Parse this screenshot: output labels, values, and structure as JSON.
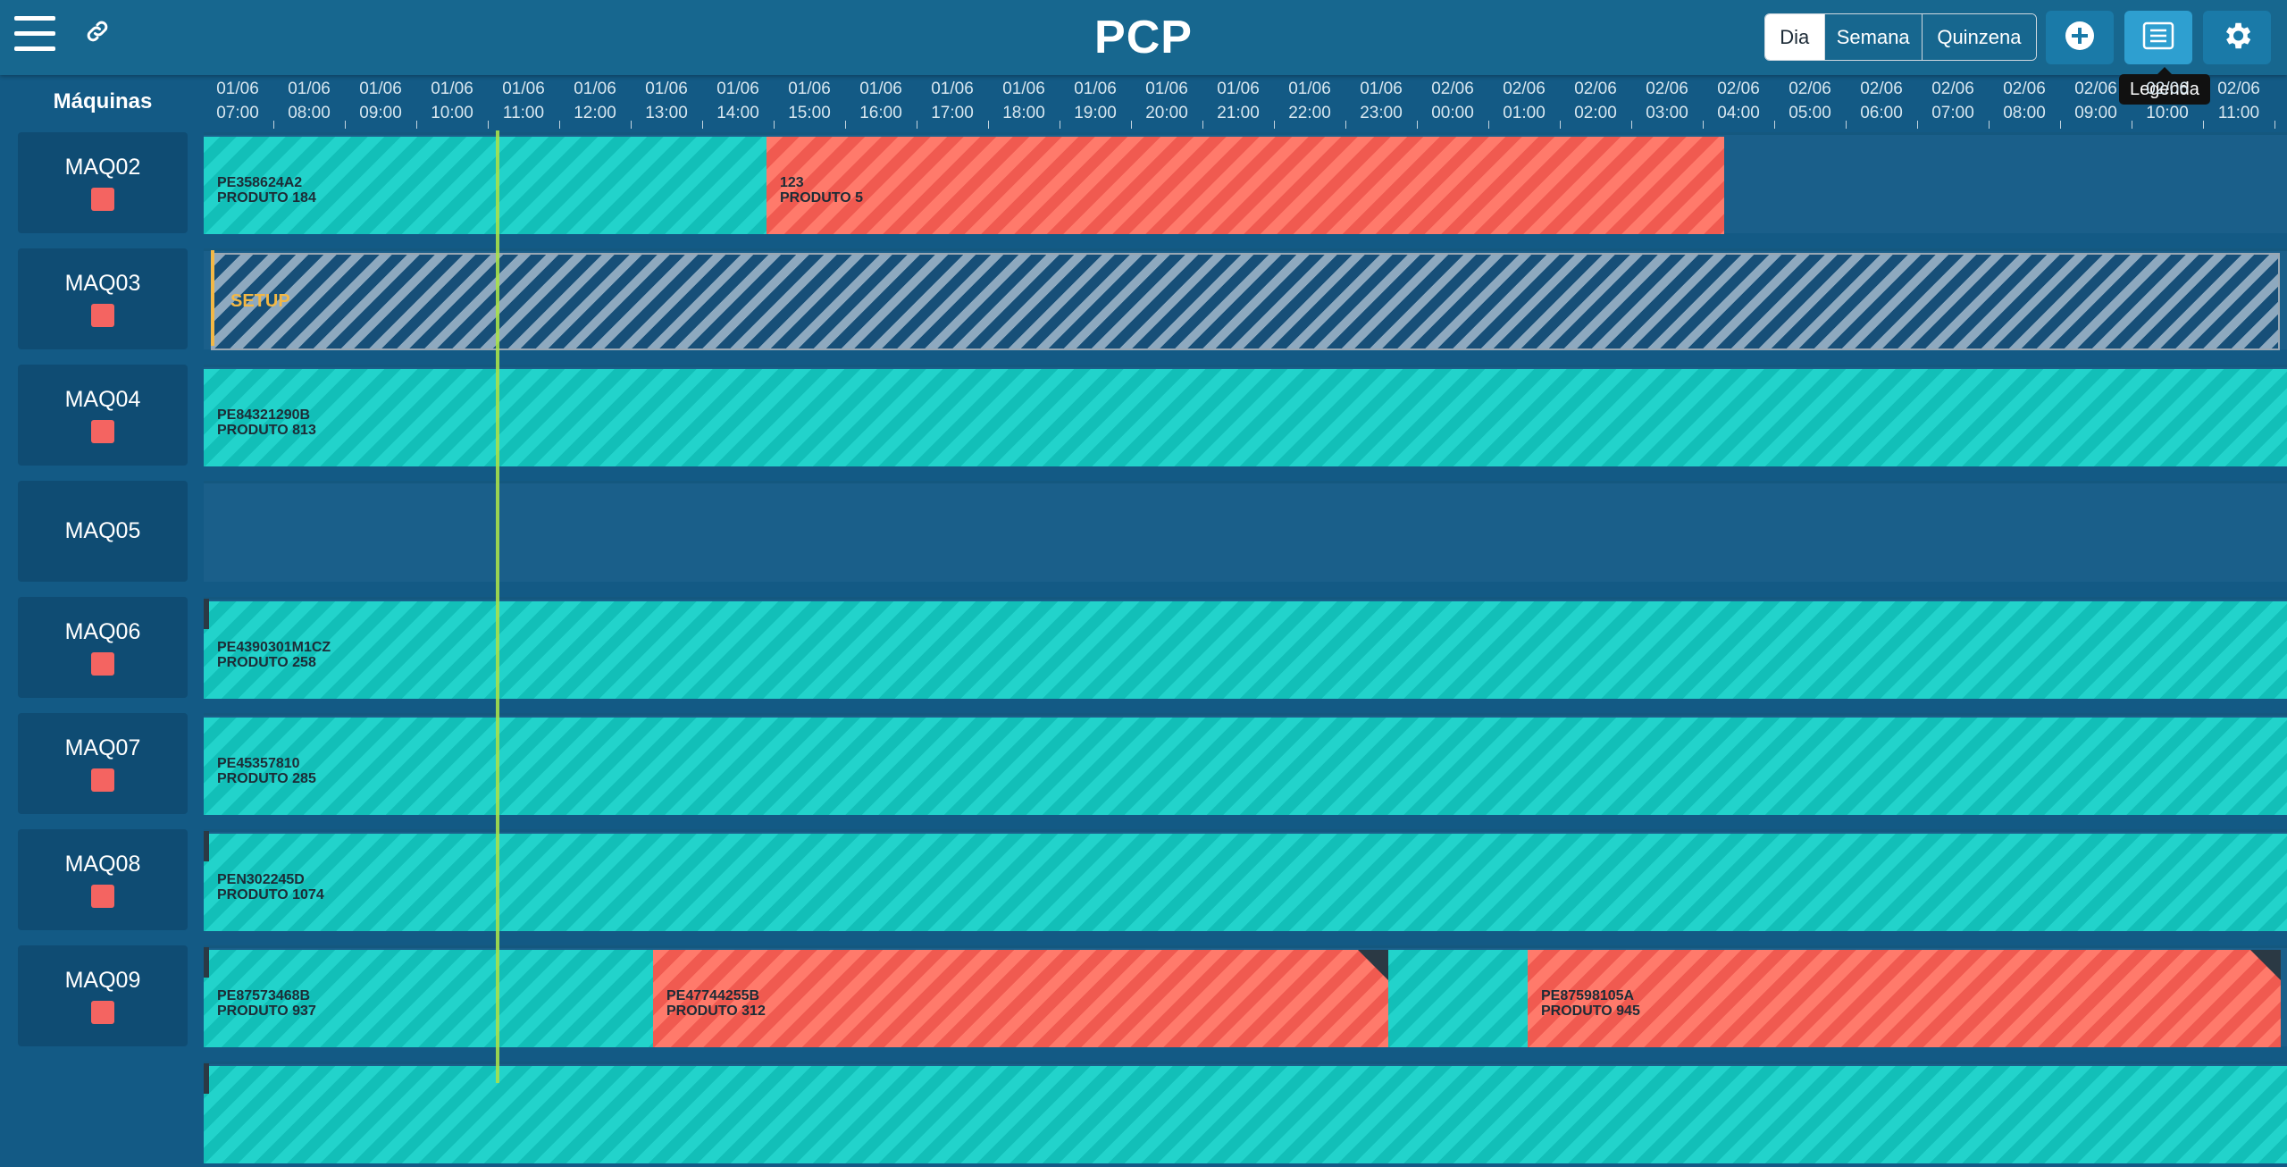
{
  "header": {
    "title": "PCP",
    "view_options": [
      "Dia",
      "Semana",
      "Quinzena"
    ],
    "active_view": "Dia",
    "tooltip": "Legenda",
    "icons": {
      "menu": "hamburger-menu-icon",
      "link": "link-icon",
      "add": "plus-circle-icon",
      "legend": "list-icon",
      "settings": "gear-icon"
    }
  },
  "timeline": {
    "machines_label": "Máquinas",
    "ticks": [
      {
        "date": "01/06",
        "time": "07:00"
      },
      {
        "date": "01/06",
        "time": "08:00"
      },
      {
        "date": "01/06",
        "time": "09:00"
      },
      {
        "date": "01/06",
        "time": "10:00"
      },
      {
        "date": "01/06",
        "time": "11:00"
      },
      {
        "date": "01/06",
        "time": "12:00"
      },
      {
        "date": "01/06",
        "time": "13:00"
      },
      {
        "date": "01/06",
        "time": "14:00"
      },
      {
        "date": "01/06",
        "time": "15:00"
      },
      {
        "date": "01/06",
        "time": "16:00"
      },
      {
        "date": "01/06",
        "time": "17:00"
      },
      {
        "date": "01/06",
        "time": "18:00"
      },
      {
        "date": "01/06",
        "time": "19:00"
      },
      {
        "date": "01/06",
        "time": "20:00"
      },
      {
        "date": "01/06",
        "time": "21:00"
      },
      {
        "date": "01/06",
        "time": "22:00"
      },
      {
        "date": "01/06",
        "time": "23:00"
      },
      {
        "date": "02/06",
        "time": "00:00"
      },
      {
        "date": "02/06",
        "time": "01:00"
      },
      {
        "date": "02/06",
        "time": "02:00"
      },
      {
        "date": "02/06",
        "time": "03:00"
      },
      {
        "date": "02/06",
        "time": "04:00"
      },
      {
        "date": "02/06",
        "time": "05:00"
      },
      {
        "date": "02/06",
        "time": "06:00"
      },
      {
        "date": "02/06",
        "time": "07:00"
      },
      {
        "date": "02/06",
        "time": "08:00"
      },
      {
        "date": "02/06",
        "time": "09:00"
      },
      {
        "date": "02/06",
        "time": "10:00"
      },
      {
        "date": "02/06",
        "time": "11:00"
      }
    ]
  },
  "colors": {
    "on_time": "#22d3cb",
    "late": "#f46461",
    "setup_label": "#f3b845",
    "now_line": "#a8e04a"
  },
  "machines": [
    {
      "name": "MAQ02",
      "status": true,
      "jobs": [
        {
          "code": "PE358624A2",
          "product": "PRODUTO 184",
          "state": "ok"
        },
        {
          "code": "123",
          "product": "PRODUTO 5",
          "state": "late"
        }
      ]
    },
    {
      "name": "MAQ03",
      "status": true,
      "jobs": [
        {
          "label": "SETUP",
          "state": "setup"
        }
      ]
    },
    {
      "name": "MAQ04",
      "status": true,
      "jobs": [
        {
          "code": "PE84321290B",
          "product": "PRODUTO 813",
          "state": "ok"
        }
      ]
    },
    {
      "name": "MAQ05",
      "status": false,
      "jobs": []
    },
    {
      "name": "MAQ06",
      "status": true,
      "jobs": [
        {
          "code": "PE4390301M1CZ",
          "product": "PRODUTO 258",
          "state": "ok"
        }
      ]
    },
    {
      "name": "MAQ07",
      "status": true,
      "jobs": [
        {
          "code": "PE45357810",
          "product": "PRODUTO 285",
          "state": "ok"
        }
      ]
    },
    {
      "name": "MAQ08",
      "status": true,
      "jobs": [
        {
          "code": "PEN302245D",
          "product": "PRODUTO 1074",
          "state": "ok"
        }
      ]
    },
    {
      "name": "MAQ09",
      "status": true,
      "jobs": [
        {
          "code": "PE87573468B",
          "product": "PRODUTO 937",
          "state": "ok"
        },
        {
          "code": "PE47744255B",
          "product": "PRODUTO 312",
          "state": "late"
        },
        {
          "code": "",
          "product": "",
          "state": "ok"
        },
        {
          "code": "PE87598105A",
          "product": "PRODUTO 945",
          "state": "late"
        }
      ]
    }
  ]
}
